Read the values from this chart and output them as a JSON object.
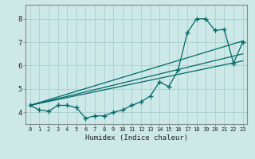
{
  "title": "",
  "xlabel": "Humidex (Indice chaleur)",
  "bg_color": "#cce9e8",
  "grid_color": "#aacfce",
  "line_color": "#006868",
  "spine_color": "#888888",
  "xlim": [
    -0.5,
    23.5
  ],
  "ylim": [
    3.5,
    8.6
  ],
  "xtick_vals": [
    0,
    1,
    2,
    3,
    4,
    5,
    6,
    7,
    8,
    9,
    10,
    11,
    12,
    13,
    14,
    15,
    16,
    17,
    18,
    19,
    20,
    21,
    22,
    23
  ],
  "xtick_labels": [
    "0",
    "1",
    "2",
    "3",
    "4",
    "5",
    "6",
    "7",
    "8",
    "9",
    "10",
    "11",
    "12",
    "13",
    "14",
    "15",
    "16",
    "17",
    "18",
    "19",
    "20",
    "21",
    "22",
    "23"
  ],
  "ytick_vals": [
    4,
    5,
    6,
    7,
    8
  ],
  "ytick_labels": [
    "4",
    "5",
    "6",
    "7",
    "8"
  ],
  "data_x": [
    0,
    1,
    2,
    3,
    4,
    5,
    6,
    7,
    8,
    9,
    10,
    11,
    12,
    13,
    14,
    15,
    16,
    17,
    18,
    19,
    20,
    21,
    22,
    23
  ],
  "data_y": [
    4.3,
    4.1,
    4.05,
    4.3,
    4.3,
    4.2,
    3.75,
    3.85,
    3.85,
    4.0,
    4.1,
    4.3,
    4.45,
    4.7,
    5.3,
    5.1,
    5.8,
    7.4,
    8.0,
    8.0,
    7.5,
    7.55,
    6.1,
    7.0
  ],
  "line1_x": [
    0,
    23
  ],
  "line1_y": [
    4.3,
    6.5
  ],
  "line2_x": [
    0,
    23
  ],
  "line2_y": [
    4.3,
    7.05
  ],
  "line3_x": [
    0,
    23
  ],
  "line3_y": [
    4.3,
    6.2
  ]
}
